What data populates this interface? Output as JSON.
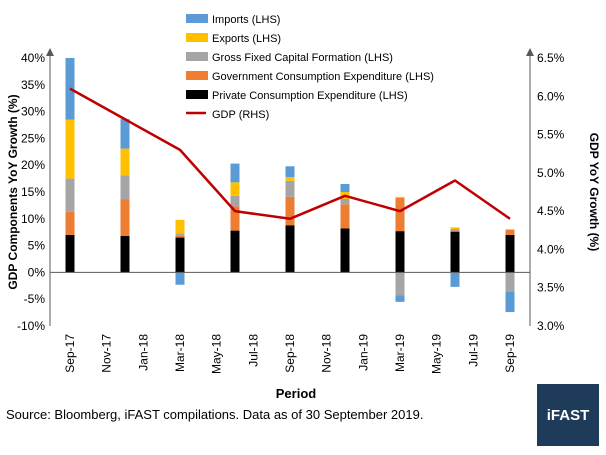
{
  "footer": {
    "source": "Source: Bloomberg, iFAST compilations. Data as of 30 September 2019.",
    "logo_text": "iFAST"
  },
  "chart_data": {
    "type": "bar",
    "xlabel": "Period",
    "ylabel_left": "GDP Components YoY Growth (%)",
    "ylabel_right": "GDP YoY Growth (%)",
    "left_ticks": [
      "-10%",
      "-5%",
      "0%",
      "5%",
      "10%",
      "15%",
      "20%",
      "25%",
      "30%",
      "35%",
      "40%"
    ],
    "right_ticks": [
      "3.0%",
      "3.5%",
      "4.0%",
      "4.5%",
      "5.0%",
      "5.5%",
      "6.0%",
      "6.5%"
    ],
    "ylim_left": [
      -10,
      40
    ],
    "ylim_right": [
      3.0,
      6.5
    ],
    "x_tick_labels": [
      "Sep-17",
      "Nov-17",
      "Jan-18",
      "Mar-18",
      "May-18",
      "Jul-18",
      "Sep-18",
      "Nov-18",
      "Jan-19",
      "Mar-19",
      "May-19",
      "Jul-19",
      "Sep-19"
    ],
    "categories": [
      "Sep-17",
      "Dec-17",
      "Mar-18",
      "Jun-18",
      "Sep-18",
      "Dec-18",
      "Mar-19",
      "Jun-19",
      "Sep-19"
    ],
    "legend_position": "top",
    "series": [
      {
        "name": "Imports (LHS)",
        "color": "#5b9bd5",
        "axis": "left",
        "kind": "stacked-bar",
        "values": [
          11.5,
          5.5,
          -2.3,
          3.5,
          2.0,
          1.5,
          -1.2,
          -2.7,
          -3.8
        ]
      },
      {
        "name": "Exports (LHS)",
        "color": "#ffc000",
        "axis": "left",
        "kind": "stacked-bar",
        "values": [
          11.0,
          5.0,
          2.5,
          2.5,
          0.7,
          1.3,
          0.2,
          0.3,
          0.0
        ]
      },
      {
        "name": "Gross Fixed Capital Formation (LHS)",
        "color": "#a5a5a5",
        "axis": "left",
        "kind": "stacked-bar",
        "values": [
          6.2,
          4.5,
          0.5,
          2.0,
          3.0,
          1.0,
          -4.3,
          0.3,
          -3.6
        ]
      },
      {
        "name": "Government Consumption Expenditure (LHS)",
        "color": "#ed7d31",
        "axis": "left",
        "kind": "stacked-bar",
        "values": [
          4.3,
          6.8,
          0.3,
          4.5,
          5.3,
          4.5,
          6.2,
          0.2,
          1.0
        ]
      },
      {
        "name": "Private Consumption Expenditure (LHS)",
        "color": "#000000",
        "axis": "left",
        "kind": "stacked-bar",
        "values": [
          7.0,
          6.8,
          6.5,
          7.8,
          8.8,
          8.2,
          7.7,
          7.6,
          7.0
        ]
      },
      {
        "name": "GDP (RHS)",
        "color": "#c00000",
        "axis": "right",
        "kind": "line",
        "values": [
          6.1,
          5.7,
          5.3,
          4.5,
          4.4,
          4.7,
          4.5,
          4.9,
          4.4
        ]
      }
    ]
  }
}
